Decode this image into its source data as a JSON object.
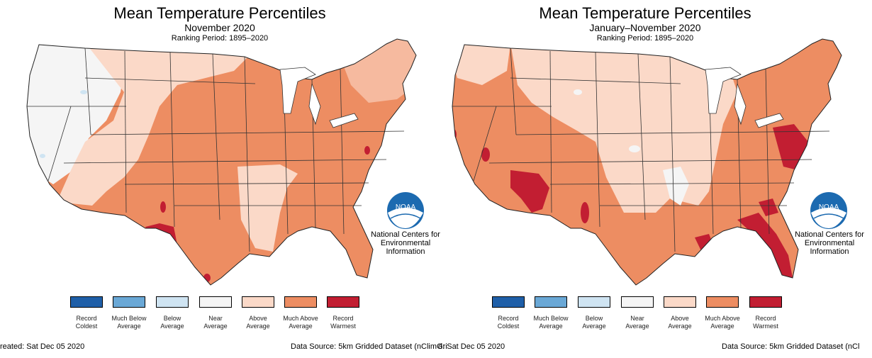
{
  "colors": {
    "record_coldest": "#1f5fa8",
    "much_below": "#6aa8d6",
    "below": "#cfe4f2",
    "near": "#f5f5f5",
    "above": "#fbd9c8",
    "much_above": "#ed8d62",
    "record_warmest": "#c21e32"
  },
  "legend": [
    {
      "key": "record_coldest",
      "label": "Record Coldest"
    },
    {
      "key": "much_below",
      "label": "Much Below Average"
    },
    {
      "key": "below",
      "label": "Below Average"
    },
    {
      "key": "near",
      "label": "Near Average"
    },
    {
      "key": "above",
      "label": "Above Average"
    },
    {
      "key": "much_above",
      "label": "Much Above Average"
    },
    {
      "key": "record_warmest",
      "label": "Record Warmest"
    }
  ],
  "ncei": {
    "logo_text": "NOAA",
    "name_lines": [
      "National Centers for",
      "Environmental",
      "Information"
    ]
  },
  "maps": [
    {
      "title": "Mean Temperature Percentiles",
      "subtitle": "November 2020",
      "period": "Ranking Period: 1895–2020",
      "footer_left": "reated: Sat Dec 05 2020",
      "footer_right": "Data Source: 5km Gridded Dataset (nClimGri"
    },
    {
      "title": "Mean Temperature Percentiles",
      "subtitle": "January–November 2020",
      "period": "Ranking Period: 1895–2020",
      "footer_left": "d: Sat Dec 05 2020",
      "footer_right": "Data Source: 5km Gridded Dataset (nCl"
    }
  ]
}
